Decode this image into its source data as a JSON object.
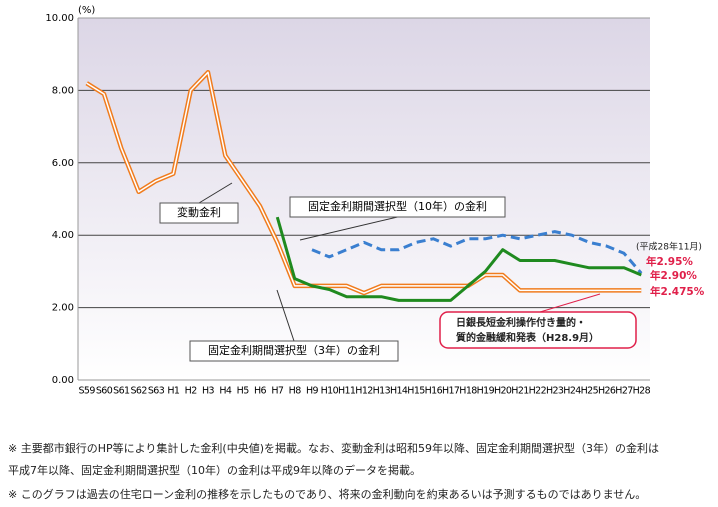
{
  "chart_data": {
    "type": "line",
    "unit": "(%)",
    "categories": [
      "S59",
      "S60",
      "S61",
      "S62",
      "S63",
      "H1",
      "H2",
      "H3",
      "H4",
      "H5",
      "H6",
      "H7",
      "H8",
      "H9",
      "H10",
      "H11",
      "H12",
      "H13",
      "H14",
      "H15",
      "H16",
      "H17",
      "H18",
      "H19",
      "H20",
      "H21",
      "H22",
      "H23",
      "H24",
      "H25",
      "H26",
      "H27",
      "H28"
    ],
    "series": [
      {
        "name": "変動金利",
        "color": "#f07c1e",
        "style": "double",
        "values": [
          8.2,
          7.9,
          6.4,
          5.2,
          5.5,
          5.7,
          8.0,
          8.5,
          6.2,
          5.5,
          4.8,
          3.8,
          2.6,
          2.6,
          2.6,
          2.6,
          2.4,
          2.6,
          2.6,
          2.6,
          2.6,
          2.6,
          2.6,
          2.9,
          2.9,
          2.475,
          2.475,
          2.475,
          2.475,
          2.475,
          2.475,
          2.475,
          2.475
        ]
      },
      {
        "name": "固定金利期間選択型（10年）の金利",
        "color": "#3a7fd0",
        "style": "dashed",
        "values": [
          null,
          null,
          null,
          null,
          null,
          null,
          null,
          null,
          null,
          null,
          null,
          null,
          null,
          3.6,
          3.4,
          3.6,
          3.8,
          3.6,
          3.6,
          3.8,
          3.9,
          3.7,
          3.9,
          3.9,
          4.0,
          3.9,
          4.0,
          4.1,
          4.0,
          3.8,
          3.7,
          3.5,
          2.95
        ]
      },
      {
        "name": "固定金利期間選択型（3年）の金利",
        "color": "#1f8a1f",
        "style": "solid",
        "values": [
          null,
          null,
          null,
          null,
          null,
          null,
          null,
          null,
          null,
          null,
          null,
          4.5,
          2.8,
          2.6,
          2.5,
          2.3,
          2.3,
          2.3,
          2.2,
          2.2,
          2.2,
          2.2,
          2.6,
          3.0,
          3.6,
          3.3,
          3.3,
          3.3,
          3.2,
          3.1,
          3.1,
          3.1,
          2.9
        ]
      }
    ],
    "ylim": [
      0,
      10
    ],
    "yticks": [
      {
        "value": 0,
        "label": "0.00"
      },
      {
        "value": 2,
        "label": "2.00"
      },
      {
        "value": 4,
        "label": "4.00"
      },
      {
        "value": 6,
        "label": "6.00"
      },
      {
        "value": 8,
        "label": "8.00"
      },
      {
        "value": 10,
        "label": "10.00"
      }
    ],
    "grid": true,
    "annotations": [
      "(平成28年11月)",
      "年2.95%",
      "年2.90%",
      "年2.475%",
      "日銀長短金利操作付き量的・",
      "質的金融緩和発表（H28.9月）"
    ],
    "notes": [
      "※ 主要都市銀行のHP等により集計した金利(中央値)を掲載。なお、変動金利は昭和59年以降、固定金利期間選択型（3年）の金利は",
      "平成7年以降、固定金利期間選択型（10年）の金利は平成9年以降のデータを掲載。",
      "※ このグラフは過去の住宅ローン金利の推移を示したものであり、将来の金利動向を約束あるいは予測するものではありません。"
    ]
  }
}
